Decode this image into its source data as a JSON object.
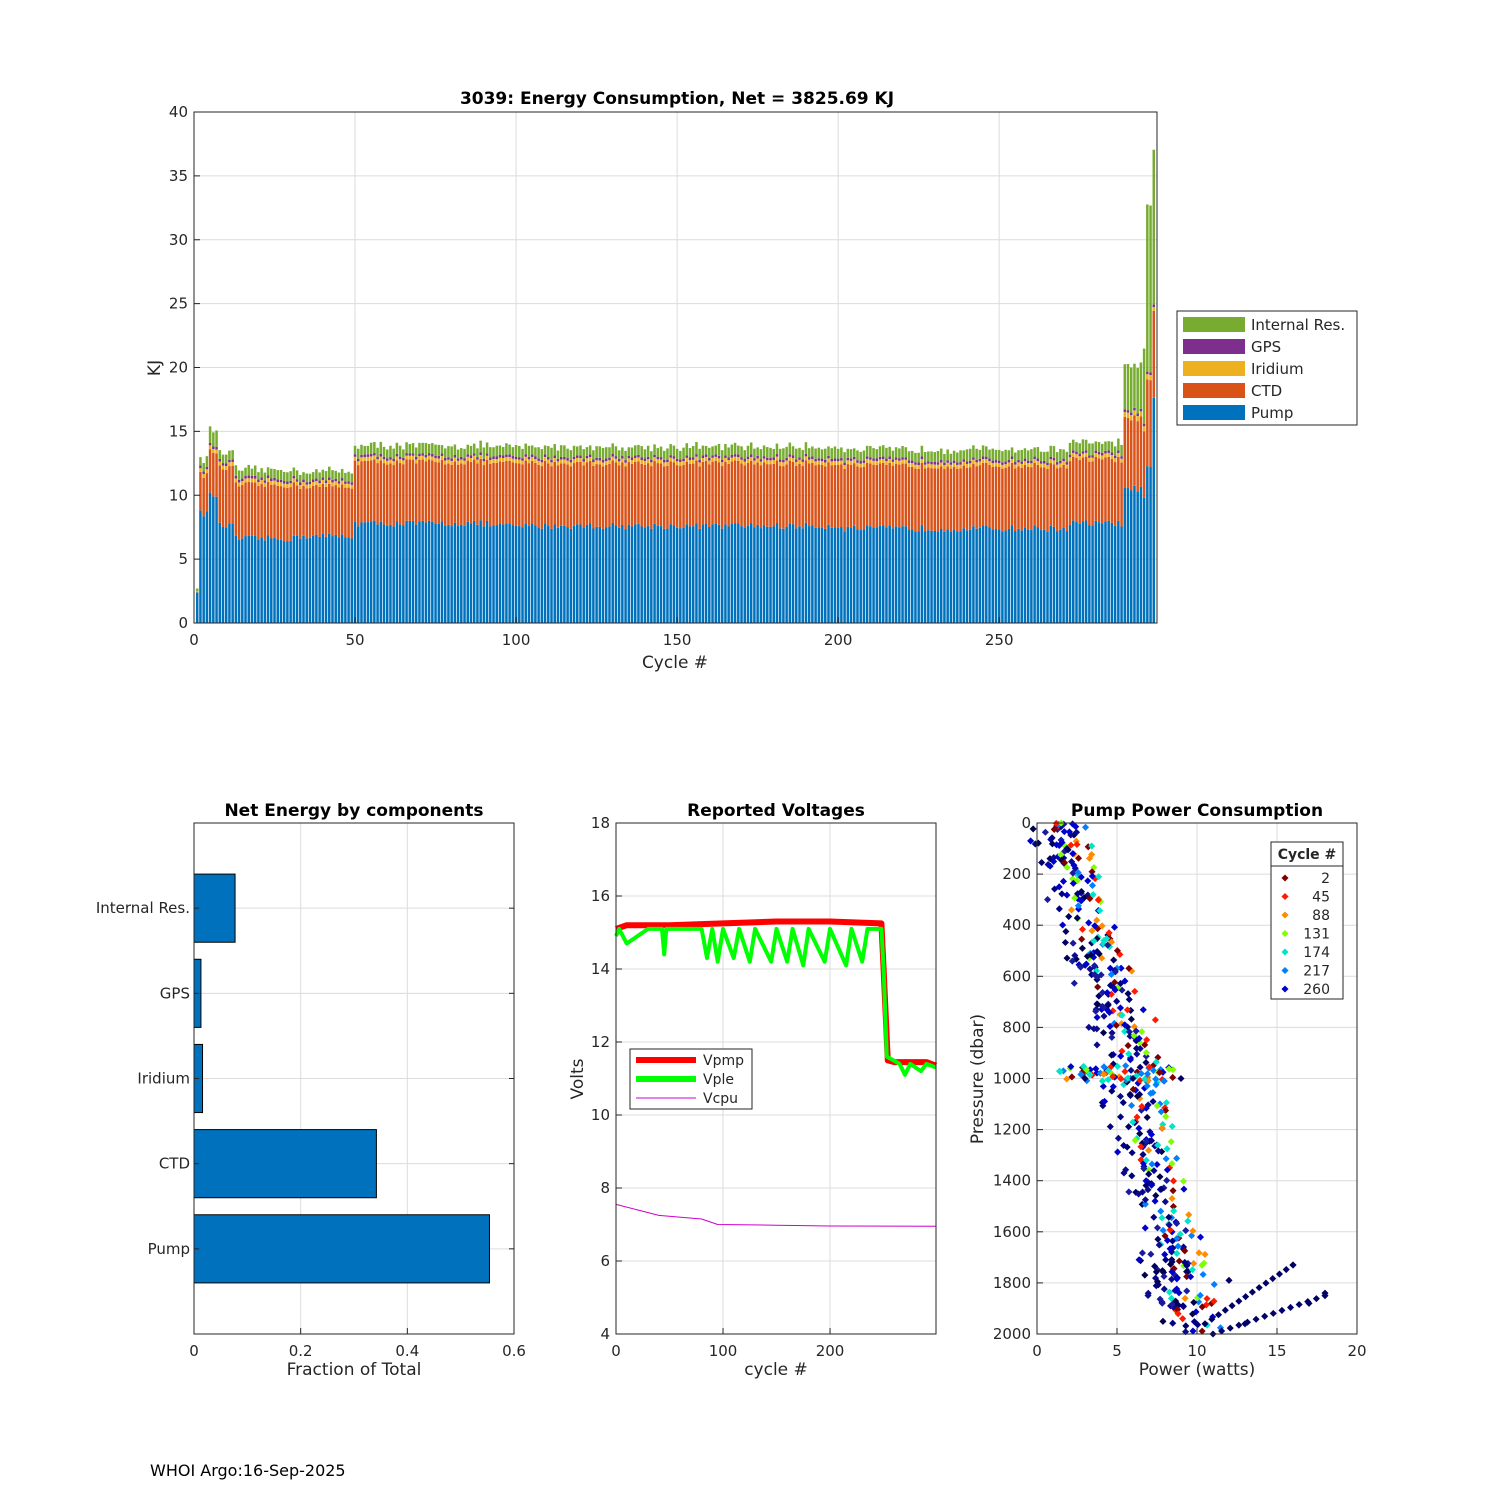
{
  "footer": "WHOI Argo:16-Sep-2025",
  "colors": {
    "pump": "#0072bd",
    "ctd": "#d95319",
    "iridium": "#edb120",
    "gps": "#7e2f8e",
    "internal": "#77ac30",
    "vpmp": "#ff0000",
    "vple": "#00ff00",
    "vcpu": "#cc00cc"
  },
  "chart_data": [
    {
      "id": "energy",
      "type": "stacked-bar",
      "title": "3039: Energy Consumption,  Net = 3825.69 KJ",
      "xlabel": "Cycle #",
      "ylabel": "KJ",
      "xlim": [
        0,
        299
      ],
      "ylim": [
        0,
        40
      ],
      "xticks": [
        0,
        50,
        100,
        150,
        200,
        250
      ],
      "yticks": [
        0,
        5,
        10,
        15,
        20,
        25,
        30,
        35,
        40
      ],
      "legend": [
        "Internal Res.",
        "GPS",
        "Iridium",
        "CTD",
        "Pump"
      ],
      "legend_position": "right",
      "series_segments": [
        {
          "from": 0,
          "to": 0,
          "pump": 2.6,
          "ctd": 0,
          "iridium": 0.1,
          "gps": 0,
          "internal": 0.1
        },
        {
          "from": 1,
          "to": 3,
          "pump": 8.6,
          "ctd": 3.0,
          "iridium": 0.3,
          "gps": 0.2,
          "internal": 0.8
        },
        {
          "from": 4,
          "to": 6,
          "pump": 10.0,
          "ctd": 3.4,
          "iridium": 0.3,
          "gps": 0.2,
          "internal": 1.2
        },
        {
          "from": 7,
          "to": 11,
          "pump": 7.6,
          "ctd": 4.5,
          "iridium": 0.3,
          "gps": 0.2,
          "internal": 0.8
        },
        {
          "from": 12,
          "to": 30,
          "pump": 6.6,
          "ctd": 4.2,
          "iridium": 0.3,
          "gps": 0.2,
          "internal": 0.7
        },
        {
          "from": 31,
          "to": 48,
          "pump": 6.8,
          "ctd": 3.9,
          "iridium": 0.3,
          "gps": 0.2,
          "internal": 0.7
        },
        {
          "from": 49,
          "to": 90,
          "pump": 7.8,
          "ctd": 4.8,
          "iridium": 0.3,
          "gps": 0.2,
          "internal": 0.8
        },
        {
          "from": 91,
          "to": 200,
          "pump": 7.6,
          "ctd": 4.9,
          "iridium": 0.3,
          "gps": 0.2,
          "internal": 0.8
        },
        {
          "from": 201,
          "to": 270,
          "pump": 7.4,
          "ctd": 4.9,
          "iridium": 0.3,
          "gps": 0.2,
          "internal": 0.8
        },
        {
          "from": 271,
          "to": 287,
          "pump": 7.8,
          "ctd": 5.0,
          "iridium": 0.3,
          "gps": 0.2,
          "internal": 0.8
        },
        {
          "from": 288,
          "to": 293,
          "pump": 10.5,
          "ctd": 5.5,
          "iridium": 0.4,
          "gps": 0.2,
          "internal": 3.5
        },
        {
          "from": 294,
          "to": 294,
          "pump": 9.6,
          "ctd": 5.2,
          "iridium": 0.4,
          "gps": 0.2,
          "internal": 6.0
        },
        {
          "from": 295,
          "to": 296,
          "pump": 12.2,
          "ctd": 6.8,
          "iridium": 0.4,
          "gps": 0.2,
          "internal": 13.0
        },
        {
          "from": 297,
          "to": 297,
          "pump": 17.4,
          "ctd": 6.8,
          "iridium": 0.3,
          "gps": 0.2,
          "internal": 12.0
        }
      ]
    },
    {
      "id": "components",
      "type": "barh",
      "title": "Net Energy by components",
      "xlabel": "Fraction of Total",
      "ylabel": "",
      "xlim": [
        0,
        0.6
      ],
      "xticks": [
        "0",
        "0.2",
        "0.4",
        "0.6"
      ],
      "categories": [
        "Internal Res.",
        "GPS",
        "Iridium",
        "CTD",
        "Pump"
      ],
      "values": [
        0.077,
        0.013,
        0.016,
        0.342,
        0.554
      ]
    },
    {
      "id": "voltages",
      "type": "line",
      "title": "Reported Voltages",
      "xlabel": "cycle #",
      "ylabel": "Volts",
      "xlim": [
        0,
        299
      ],
      "ylim": [
        4,
        18
      ],
      "xticks": [
        0,
        100,
        200
      ],
      "yticks": [
        4,
        6,
        8,
        10,
        12,
        14,
        16,
        18
      ],
      "legend_position": "center-left",
      "series": [
        {
          "name": "Vpmp",
          "points": [
            [
              0,
              15.1
            ],
            [
              10,
              15.2
            ],
            [
              50,
              15.2
            ],
            [
              100,
              15.25
            ],
            [
              150,
              15.3
            ],
            [
              200,
              15.3
            ],
            [
              248,
              15.25
            ],
            [
              250,
              14.0
            ],
            [
              254,
              11.5
            ],
            [
              260,
              11.45
            ],
            [
              290,
              11.45
            ],
            [
              299,
              11.35
            ]
          ]
        },
        {
          "name": "Vple",
          "points": [
            [
              0,
              14.9
            ],
            [
              3,
              15.1
            ],
            [
              10,
              14.7
            ],
            [
              30,
              15.1
            ],
            [
              43,
              15.1
            ],
            [
              45,
              14.4
            ],
            [
              47,
              15.1
            ],
            [
              80,
              15.1
            ],
            [
              85,
              14.3
            ],
            [
              90,
              15.1
            ],
            [
              95,
              14.2
            ],
            [
              100,
              15.1
            ],
            [
              110,
              14.3
            ],
            [
              115,
              15.1
            ],
            [
              125,
              14.2
            ],
            [
              130,
              15.1
            ],
            [
              145,
              14.2
            ],
            [
              150,
              15.1
            ],
            [
              160,
              14.2
            ],
            [
              165,
              15.1
            ],
            [
              175,
              14.1
            ],
            [
              180,
              15.1
            ],
            [
              195,
              14.2
            ],
            [
              200,
              15.1
            ],
            [
              215,
              14.1
            ],
            [
              220,
              15.1
            ],
            [
              230,
              14.2
            ],
            [
              235,
              15.1
            ],
            [
              248,
              15.1
            ],
            [
              250,
              14.0
            ],
            [
              253,
              11.6
            ],
            [
              265,
              11.4
            ],
            [
              270,
              11.1
            ],
            [
              275,
              11.4
            ],
            [
              285,
              11.2
            ],
            [
              290,
              11.4
            ],
            [
              299,
              11.3
            ]
          ]
        },
        {
          "name": "Vcpu",
          "points": [
            [
              0,
              7.55
            ],
            [
              20,
              7.4
            ],
            [
              40,
              7.25
            ],
            [
              80,
              7.15
            ],
            [
              95,
              7.0
            ],
            [
              150,
              6.98
            ],
            [
              200,
              6.96
            ],
            [
              299,
              6.95
            ]
          ]
        }
      ]
    },
    {
      "id": "pump",
      "type": "scatter",
      "title": "Pump Power Consumption",
      "xlabel": "Power (watts)",
      "ylabel": "Pressure (dbar)",
      "xlim": [
        0,
        20
      ],
      "ylim": [
        0,
        2000
      ],
      "yreversed": true,
      "xticks": [
        0,
        5,
        10,
        15,
        20
      ],
      "yticks": [
        0,
        200,
        400,
        600,
        800,
        1000,
        1200,
        1400,
        1600,
        1800,
        2000
      ],
      "legend_title": "Cycle #",
      "legend": [
        "2",
        "45",
        "88",
        "131",
        "174",
        "217",
        "260"
      ],
      "legend_colors": [
        "#7f0000",
        "#ff1a00",
        "#ff8c00",
        "#7fff00",
        "#00e5c8",
        "#0080ff",
        "#0000cd"
      ],
      "trend": [
        [
          1,
          0
        ],
        [
          1.5,
          100
        ],
        [
          2.2,
          300
        ],
        [
          3.2,
          500
        ],
        [
          4.5,
          700
        ],
        [
          5.2,
          900
        ],
        [
          5.8,
          1100
        ],
        [
          6.5,
          1300
        ],
        [
          7.2,
          1500
        ],
        [
          8.0,
          1700
        ],
        [
          8.8,
          1900
        ],
        [
          9.5,
          2000
        ]
      ],
      "excursions": [
        [
          3,
          1000
        ],
        [
          6,
          1000
        ],
        [
          9,
          1000
        ],
        [
          12,
          1790
        ],
        [
          16,
          1730
        ],
        [
          13,
          1960
        ],
        [
          17,
          1880
        ],
        [
          18,
          1840
        ]
      ]
    }
  ]
}
